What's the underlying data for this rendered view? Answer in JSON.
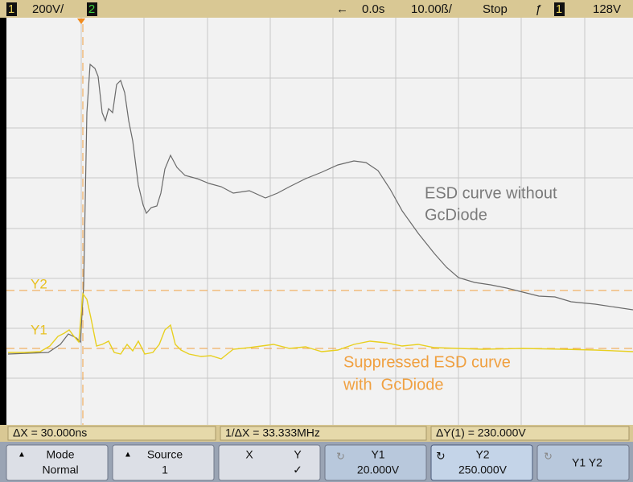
{
  "top_bar": {
    "channel1": "1",
    "scale": "200V/",
    "channel2": "2",
    "arrow": "←",
    "delay": "0.0s",
    "timebase": "10.00ß/",
    "status": "Stop",
    "trigger_channel": "1",
    "trigger_level": "128V"
  },
  "annotations": {
    "y2": "Y2",
    "y1": "Y1",
    "esd_without": [
      "ESD curve without",
      "GcDiode"
    ],
    "suppressed": [
      "Suppressed ESD curve",
      "with  GcDiode"
    ]
  },
  "measurements": [
    "ΔX = 30.000ns",
    "1/ΔX = 33.333MHz",
    "ΔY(1) = 230.000V"
  ],
  "softkeys": [
    {
      "label": "Mode",
      "value": "Normal"
    },
    {
      "label": "Source",
      "value": "1"
    },
    {
      "labels": [
        "X",
        "Y"
      ],
      "value": "✓"
    },
    {
      "label": "Y1",
      "value": "20.000V"
    },
    {
      "label": "Y2",
      "value": "250.000V"
    },
    {
      "label": "Y1 Y2"
    }
  ]
}
